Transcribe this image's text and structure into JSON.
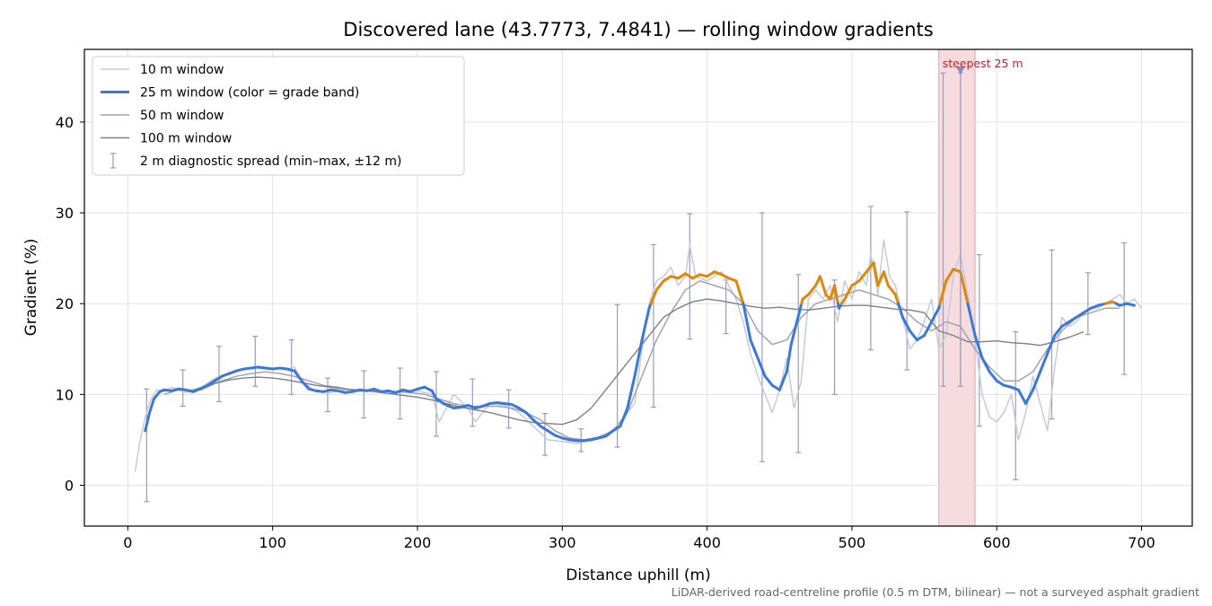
{
  "chart_data": {
    "type": "line",
    "title": "Discovered lane (43.7773, 7.4841) — rolling window gradients",
    "xlabel": "Distance uphill (m)",
    "ylabel": "Gradient (%)",
    "xlim": [
      -30,
      735
    ],
    "ylim": [
      -4.5,
      48
    ],
    "x_ticks": [
      0,
      100,
      200,
      300,
      400,
      500,
      600,
      700
    ],
    "y_ticks": [
      0,
      10,
      20,
      30,
      40
    ],
    "grid": true,
    "legend_position": "upper-left",
    "colors": {
      "w10": "#c5ccd6",
      "w25_base": "#3b78d8",
      "w25_band": "#e0860b",
      "w50": "#9ea5b0",
      "w100": "#7b808a",
      "errbar": "#9a9bc0",
      "highlight": "#f3d0d4",
      "highlight_line": "#e8a0a8",
      "annotation": "#c0212f"
    },
    "series": [
      {
        "name": "10 m window",
        "x": [
          5,
          8,
          12,
          16,
          20,
          25,
          30,
          40,
          50,
          60,
          70,
          80,
          90,
          100,
          110,
          115,
          120,
          130,
          140,
          150,
          160,
          170,
          180,
          190,
          200,
          210,
          215,
          225,
          235,
          240,
          250,
          260,
          270,
          280,
          290,
          300,
          310,
          320,
          330,
          340,
          345,
          350,
          355,
          360,
          365,
          370,
          375,
          380,
          385,
          388,
          392,
          400,
          410,
          415,
          420,
          425,
          430,
          435,
          440,
          445,
          450,
          455,
          460,
          465,
          470,
          475,
          480,
          485,
          490,
          495,
          500,
          505,
          510,
          513,
          518,
          522,
          526,
          530,
          535,
          540,
          545,
          550,
          555,
          560,
          565,
          570,
          575,
          580,
          585,
          590,
          595,
          600,
          605,
          610,
          615,
          620,
          625,
          630,
          635,
          640,
          645,
          650,
          655,
          660,
          665,
          670,
          675,
          680,
          685,
          690,
          695,
          700
        ],
        "y": [
          1.5,
          4.5,
          7.5,
          9.5,
          10.5,
          10.3,
          10.8,
          10.2,
          10.7,
          11.8,
          12.2,
          12.8,
          13.1,
          12.9,
          12.8,
          13.0,
          11.5,
          10.3,
          10.2,
          10.5,
          10.3,
          10.6,
          10.1,
          10.5,
          10.4,
          10.0,
          7.0,
          10.0,
          8.5,
          7.0,
          9.0,
          8.8,
          8.0,
          6.5,
          5.0,
          4.8,
          4.6,
          5.0,
          5.5,
          6.5,
          8.0,
          9.0,
          15.0,
          20.0,
          22.5,
          23.0,
          24.0,
          22.0,
          23.0,
          26.5,
          23.0,
          22.5,
          23.5,
          22.0,
          20.5,
          18.0,
          14.5,
          12.0,
          10.0,
          8.0,
          10.5,
          14.0,
          8.5,
          11.5,
          20.5,
          21.5,
          20.5,
          22.0,
          18.0,
          22.5,
          20.5,
          23.5,
          22.0,
          25.5,
          21.0,
          27.0,
          23.0,
          22.0,
          18.5,
          15.0,
          16.0,
          18.0,
          20.5,
          15.0,
          16.5,
          23.0,
          25.5,
          21.0,
          16.0,
          10.0,
          7.5,
          7.0,
          8.0,
          10.0,
          5.0,
          8.0,
          12.0,
          9.0,
          6.0,
          13.0,
          18.5,
          17.5,
          18.0,
          19.0,
          19.5,
          19.5,
          20.0,
          20.5,
          21.0,
          20.0,
          20.5,
          19.5
        ]
      },
      {
        "name": "25 m window (color = grade band)",
        "x": [
          12,
          15,
          18,
          22,
          25,
          30,
          35,
          40,
          45,
          50,
          55,
          60,
          65,
          70,
          75,
          80,
          85,
          90,
          95,
          100,
          105,
          110,
          115,
          120,
          125,
          130,
          135,
          140,
          145,
          150,
          155,
          160,
          165,
          170,
          175,
          180,
          185,
          190,
          195,
          200,
          205,
          210,
          213,
          218,
          222,
          225,
          230,
          235,
          240,
          245,
          250,
          255,
          260,
          265,
          270,
          275,
          280,
          285,
          290,
          295,
          300,
          305,
          310,
          315,
          320,
          325,
          330,
          335,
          340,
          345,
          350,
          355,
          360,
          365,
          370,
          375,
          380,
          385,
          390,
          395,
          400,
          405,
          410,
          415,
          420,
          425,
          430,
          435,
          440,
          445,
          450,
          455,
          458,
          462,
          466,
          470,
          475,
          478,
          482,
          485,
          488,
          491,
          495,
          500,
          505,
          510,
          515,
          518,
          522,
          525,
          530,
          535,
          540,
          545,
          550,
          555,
          560,
          565,
          570,
          575,
          580,
          585,
          590,
          595,
          600,
          605,
          610,
          615,
          620,
          625,
          630,
          635,
          640,
          645,
          650,
          655,
          660,
          665,
          670,
          675,
          680,
          685,
          690,
          695
        ],
        "y": [
          6.0,
          8.0,
          9.5,
          10.3,
          10.5,
          10.4,
          10.6,
          10.5,
          10.3,
          10.6,
          11.0,
          11.5,
          12.0,
          12.3,
          12.6,
          12.8,
          12.9,
          13.0,
          12.9,
          12.8,
          12.9,
          12.8,
          12.6,
          11.5,
          10.6,
          10.4,
          10.3,
          10.5,
          10.4,
          10.2,
          10.3,
          10.5,
          10.4,
          10.6,
          10.3,
          10.4,
          10.2,
          10.5,
          10.3,
          10.6,
          10.8,
          10.4,
          9.5,
          9.0,
          8.7,
          8.5,
          8.6,
          8.8,
          8.5,
          8.7,
          9.0,
          9.1,
          9.0,
          8.9,
          8.5,
          8.0,
          7.2,
          6.5,
          6.0,
          5.5,
          5.2,
          5.0,
          4.9,
          4.9,
          5.0,
          5.2,
          5.4,
          6.0,
          6.5,
          8.5,
          12.0,
          16.0,
          19.5,
          21.5,
          22.5,
          23.0,
          22.8,
          23.3,
          22.8,
          23.2,
          23.0,
          23.5,
          23.2,
          22.8,
          22.5,
          20.0,
          16.0,
          14.0,
          12.0,
          11.0,
          10.5,
          12.5,
          15.5,
          18.0,
          20.5,
          21.0,
          22.0,
          23.0,
          21.0,
          20.5,
          22.0,
          19.5,
          20.5,
          22.0,
          22.5,
          23.5,
          24.5,
          22.0,
          23.5,
          22.0,
          21.0,
          18.5,
          17.0,
          16.0,
          16.5,
          18.0,
          19.5,
          22.5,
          23.8,
          23.5,
          20.0,
          16.5,
          14.0,
          12.5,
          11.5,
          11.0,
          10.8,
          10.5,
          9.0,
          10.5,
          12.5,
          14.5,
          16.5,
          17.5,
          18.0,
          18.5,
          19.0,
          19.5,
          19.8,
          20.0,
          20.2,
          19.8,
          20.0,
          19.8
        ]
      },
      {
        "name": "50 m window",
        "x": [
          25,
          35,
          45,
          55,
          65,
          75,
          85,
          95,
          105,
          115,
          125,
          135,
          145,
          155,
          165,
          175,
          185,
          195,
          205,
          215,
          225,
          235,
          245,
          255,
          265,
          275,
          285,
          295,
          305,
          315,
          325,
          335,
          345,
          355,
          365,
          375,
          385,
          395,
          405,
          415,
          425,
          435,
          445,
          455,
          465,
          475,
          485,
          495,
          505,
          515,
          525,
          535,
          545,
          555,
          565,
          575,
          585,
          595,
          605,
          615,
          625,
          635,
          645,
          655,
          665,
          675,
          685
        ],
        "y": [
          10.0,
          10.5,
          10.5,
          11.0,
          11.5,
          12.0,
          12.3,
          12.5,
          12.3,
          12.0,
          11.5,
          11.0,
          10.8,
          10.5,
          10.5,
          10.3,
          10.3,
          10.2,
          10.0,
          9.5,
          9.0,
          8.7,
          8.7,
          8.7,
          8.5,
          8.0,
          7.2,
          6.0,
          5.2,
          5.0,
          5.3,
          6.0,
          8.0,
          12.0,
          16.0,
          19.0,
          21.5,
          22.5,
          22.0,
          21.5,
          20.0,
          17.0,
          15.5,
          16.0,
          18.5,
          20.0,
          20.5,
          21.0,
          21.5,
          21.0,
          20.5,
          19.5,
          18.0,
          17.0,
          18.0,
          17.5,
          15.0,
          13.0,
          11.5,
          11.5,
          12.5,
          15.0,
          17.0,
          18.5,
          19.0,
          19.5,
          19.5
        ]
      },
      {
        "name": "100 m window",
        "x": [
          50,
          60,
          70,
          80,
          90,
          100,
          110,
          120,
          130,
          140,
          150,
          160,
          170,
          180,
          190,
          200,
          210,
          220,
          230,
          240,
          250,
          260,
          270,
          280,
          290,
          300,
          310,
          320,
          330,
          340,
          350,
          360,
          370,
          380,
          390,
          400,
          410,
          420,
          430,
          440,
          450,
          460,
          470,
          480,
          490,
          500,
          510,
          520,
          530,
          540,
          550,
          560,
          570,
          580,
          590,
          600,
          610,
          620,
          630,
          640,
          650,
          660
        ],
        "y": [
          10.5,
          11.2,
          11.6,
          11.8,
          11.9,
          11.8,
          11.6,
          11.3,
          11.0,
          10.8,
          10.6,
          10.5,
          10.3,
          10.1,
          9.9,
          9.7,
          9.4,
          9.0,
          8.6,
          8.3,
          8.0,
          7.6,
          7.2,
          6.9,
          6.8,
          6.7,
          7.2,
          8.5,
          10.5,
          12.5,
          14.5,
          16.5,
          18.5,
          19.5,
          20.2,
          20.5,
          20.3,
          20.0,
          19.7,
          19.5,
          19.6,
          19.4,
          19.3,
          19.5,
          19.7,
          19.8,
          19.8,
          19.6,
          19.4,
          19.3,
          19.0,
          17.0,
          16.5,
          15.8,
          15.8,
          15.9,
          15.7,
          15.6,
          15.4,
          15.8,
          16.3,
          16.9
        ]
      }
    ],
    "grade_band": {
      "threshold": 20,
      "above_color": "#e0860b",
      "below_color": "#3b78d8"
    },
    "error_bars": {
      "name": "2 m diagnostic spread (min–max, ±12 m)",
      "x": [
        13,
        38,
        63,
        88,
        113,
        138,
        163,
        188,
        213,
        238,
        263,
        288,
        313,
        338,
        363,
        388,
        413,
        438,
        463,
        488,
        513,
        538,
        563,
        575,
        588,
        613,
        638,
        663,
        688
      ],
      "low": [
        -1.8,
        8.7,
        9.2,
        10.9,
        10.0,
        8.1,
        7.4,
        7.3,
        5.4,
        6.5,
        6.3,
        3.3,
        3.7,
        4.2,
        8.6,
        16.1,
        16.7,
        2.6,
        3.6,
        10.0,
        14.9,
        12.7,
        10.9,
        10.9,
        6.5,
        0.6,
        7.3,
        16.6,
        12.2
      ],
      "high": [
        10.6,
        12.7,
        15.3,
        16.4,
        16.0,
        11.8,
        12.6,
        12.9,
        12.5,
        11.7,
        10.5,
        7.9,
        6.2,
        19.9,
        26.5,
        29.9,
        22.6,
        30.0,
        23.2,
        22.6,
        30.7,
        30.1,
        45.4,
        45.4,
        25.4,
        16.9,
        25.9,
        23.4,
        26.7
      ]
    },
    "highlight": {
      "label": "steepest 25 m",
      "x_start": 560,
      "x_end": 585,
      "marker_x": 575,
      "marker_y": 45.6
    },
    "footnote": "LiDAR-derived road-centreline profile (0.5 m DTM, bilinear) — not a surveyed asphalt gradient"
  }
}
